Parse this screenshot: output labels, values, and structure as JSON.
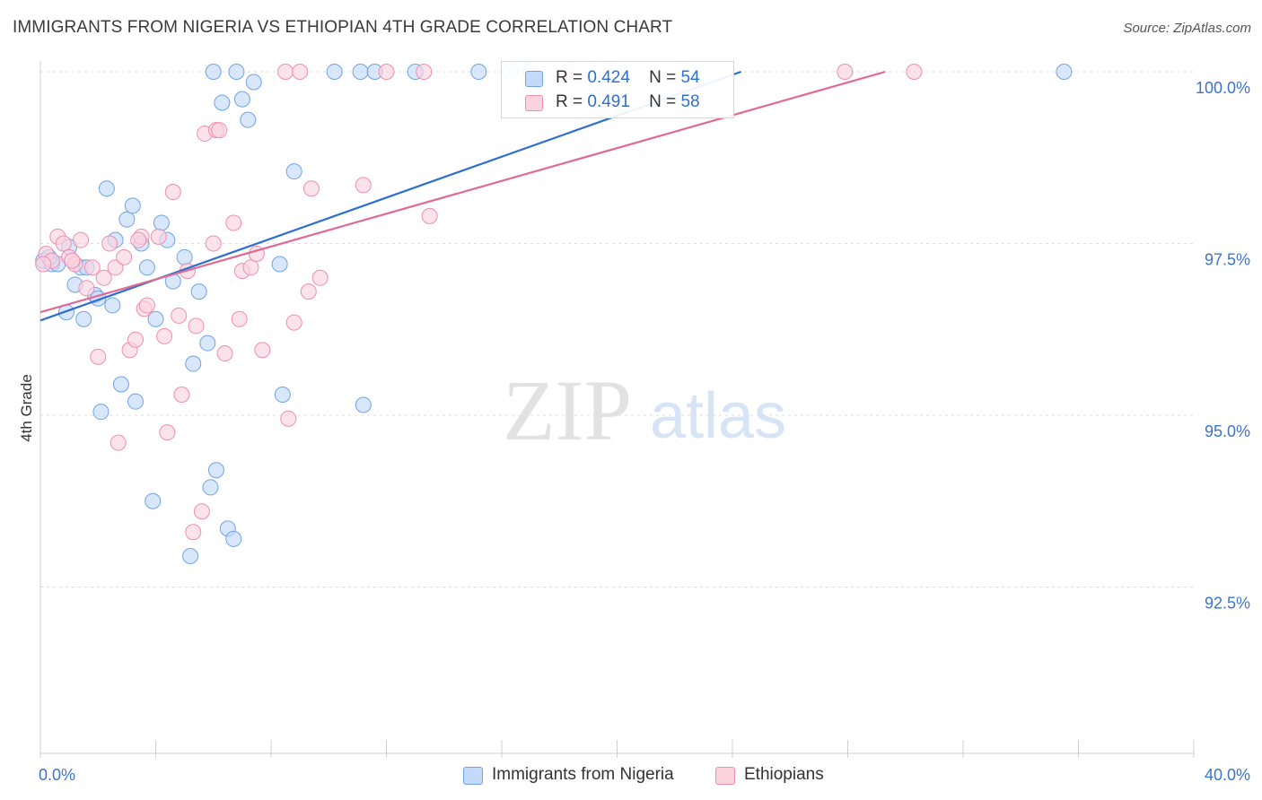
{
  "header": {
    "title": "IMMIGRANTS FROM NIGERIA VS ETHIOPIAN 4TH GRADE CORRELATION CHART",
    "source": "Source: ZipAtlas.com"
  },
  "watermark": {
    "zip": "ZIP",
    "atlas": "atlas"
  },
  "legend": {
    "r_label": "R =",
    "n_label": "N =",
    "rows": [
      {
        "r": "0.424",
        "n": "54",
        "color": "#a9c8f0"
      },
      {
        "r": "0.491",
        "n": "58",
        "color": "#f6b8cc"
      }
    ]
  },
  "chart_data": {
    "type": "scatter",
    "title": "IMMIGRANTS FROM NIGERIA VS ETHIOPIAN 4TH GRADE CORRELATION CHART",
    "xlabel": "",
    "ylabel": "4th Grade",
    "xlim": [
      0,
      40
    ],
    "ylim": [
      90.8,
      100.1
    ],
    "x_tick_labels": [
      "0.0%",
      "40.0%"
    ],
    "y_ticks": [
      92.5,
      95.0,
      97.5,
      100.0
    ],
    "y_tick_labels": [
      "92.5%",
      "95.0%",
      "97.5%",
      "100.0%"
    ],
    "grid": true,
    "legend_position": "top-center",
    "series": [
      {
        "name": "Immigrants from Nigeria",
        "color": "#6fa3e6",
        "fill": "#c4dafa",
        "line_color": "#2e6fd1",
        "trend": {
          "x": [
            0,
            24.3
          ],
          "y": [
            96.38,
            100.0
          ]
        },
        "points": [
          [
            0.1,
            97.25
          ],
          [
            0.4,
            97.2
          ],
          [
            0.6,
            97.2
          ],
          [
            0.9,
            96.5
          ],
          [
            1.0,
            97.45
          ],
          [
            1.2,
            96.9
          ],
          [
            1.4,
            97.15
          ],
          [
            1.5,
            96.4
          ],
          [
            1.9,
            96.75
          ],
          [
            2.1,
            95.05
          ],
          [
            2.3,
            98.3
          ],
          [
            2.5,
            96.6
          ],
          [
            2.6,
            97.55
          ],
          [
            2.8,
            95.45
          ],
          [
            3.0,
            97.85
          ],
          [
            3.2,
            98.05
          ],
          [
            3.3,
            95.2
          ],
          [
            3.5,
            97.5
          ],
          [
            3.7,
            97.15
          ],
          [
            3.9,
            93.75
          ],
          [
            4.0,
            96.4
          ],
          [
            4.2,
            97.8
          ],
          [
            4.4,
            97.55
          ],
          [
            4.6,
            96.95
          ],
          [
            5.0,
            97.3
          ],
          [
            5.2,
            92.95
          ],
          [
            5.3,
            95.75
          ],
          [
            5.5,
            96.8
          ],
          [
            5.8,
            96.05
          ],
          [
            5.9,
            93.95
          ],
          [
            6.1,
            94.2
          ],
          [
            6.3,
            99.55
          ],
          [
            6.5,
            93.35
          ],
          [
            6.7,
            93.2
          ],
          [
            6.8,
            100.0
          ],
          [
            7.0,
            99.6
          ],
          [
            7.2,
            99.3
          ],
          [
            7.4,
            99.85
          ],
          [
            8.3,
            97.2
          ],
          [
            8.4,
            95.3
          ],
          [
            8.8,
            98.55
          ],
          [
            6.0,
            100.0
          ],
          [
            10.2,
            100.0
          ],
          [
            11.1,
            100.0
          ],
          [
            11.6,
            100.0
          ],
          [
            13.0,
            100.0
          ],
          [
            15.2,
            100.0
          ],
          [
            16.3,
            100.0
          ],
          [
            17.0,
            100.0
          ],
          [
            11.2,
            95.15
          ],
          [
            35.5,
            100.0
          ],
          [
            1.6,
            97.15
          ],
          [
            0.3,
            97.3
          ],
          [
            2.0,
            96.7
          ]
        ]
      },
      {
        "name": "Ethiopians",
        "color": "#ee8fae",
        "fill": "#fbd3df",
        "line_color": "#e06a94",
        "trend": {
          "x": [
            0,
            29.3
          ],
          "y": [
            96.5,
            100.0
          ]
        },
        "points": [
          [
            0.2,
            97.35
          ],
          [
            0.4,
            97.25
          ],
          [
            0.6,
            97.6
          ],
          [
            0.8,
            97.5
          ],
          [
            1.0,
            97.3
          ],
          [
            1.2,
            97.2
          ],
          [
            1.4,
            97.55
          ],
          [
            1.6,
            96.85
          ],
          [
            1.8,
            97.15
          ],
          [
            2.0,
            95.85
          ],
          [
            2.2,
            97.0
          ],
          [
            2.4,
            97.5
          ],
          [
            2.6,
            97.15
          ],
          [
            2.7,
            94.6
          ],
          [
            2.9,
            97.3
          ],
          [
            3.1,
            95.95
          ],
          [
            3.3,
            96.1
          ],
          [
            3.5,
            97.6
          ],
          [
            3.6,
            96.55
          ],
          [
            3.7,
            96.6
          ],
          [
            4.1,
            97.6
          ],
          [
            4.3,
            96.15
          ],
          [
            4.4,
            94.75
          ],
          [
            4.6,
            98.25
          ],
          [
            4.8,
            96.45
          ],
          [
            4.9,
            95.3
          ],
          [
            5.1,
            97.1
          ],
          [
            5.3,
            93.3
          ],
          [
            5.4,
            96.3
          ],
          [
            5.6,
            93.6
          ],
          [
            5.7,
            99.1
          ],
          [
            6.0,
            97.5
          ],
          [
            6.1,
            99.15
          ],
          [
            6.2,
            99.15
          ],
          [
            6.4,
            95.9
          ],
          [
            6.7,
            97.8
          ],
          [
            6.9,
            96.4
          ],
          [
            7.0,
            97.1
          ],
          [
            7.3,
            97.15
          ],
          [
            7.5,
            97.35
          ],
          [
            7.7,
            95.95
          ],
          [
            8.6,
            94.95
          ],
          [
            8.8,
            96.35
          ],
          [
            9.3,
            96.8
          ],
          [
            9.4,
            98.3
          ],
          [
            9.7,
            97.0
          ],
          [
            11.2,
            98.35
          ],
          [
            13.5,
            97.9
          ],
          [
            8.5,
            100.0
          ],
          [
            9.0,
            100.0
          ],
          [
            12.0,
            100.0
          ],
          [
            13.3,
            100.0
          ],
          [
            18.3,
            100.0
          ],
          [
            27.9,
            100.0
          ],
          [
            30.3,
            100.0
          ],
          [
            0.1,
            97.2
          ],
          [
            3.4,
            97.55
          ],
          [
            1.1,
            97.25
          ]
        ]
      }
    ]
  },
  "bottom_legend": [
    {
      "label": "Immigrants from Nigeria",
      "color": "#c4dafa",
      "border": "#6fa3e6"
    },
    {
      "label": "Ethiopians",
      "color": "#fbd3df",
      "border": "#ee8fae"
    }
  ]
}
